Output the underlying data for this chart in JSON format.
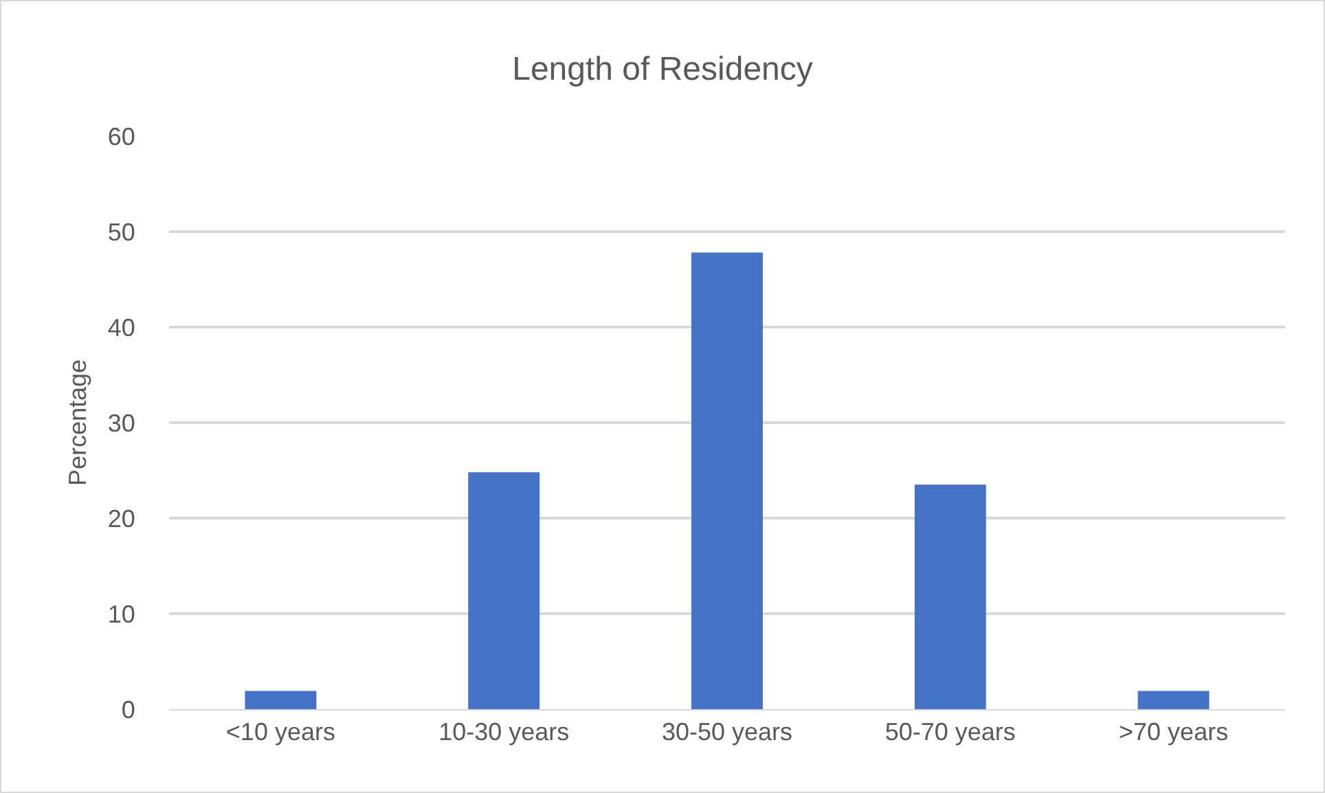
{
  "chart_data": {
    "type": "bar",
    "title": "Length of Residency",
    "ylabel": "Percentage",
    "categories": [
      "<10 years",
      "10-30 years",
      "30-50 years",
      "50-70 years",
      ">70 years"
    ],
    "values": [
      1.9,
      24.8,
      47.8,
      23.5,
      1.9
    ],
    "color": "#4472c4",
    "ylim": [
      0,
      60
    ],
    "yticks": [
      0,
      10,
      20,
      30,
      40,
      50,
      60
    ],
    "grid": "y"
  }
}
